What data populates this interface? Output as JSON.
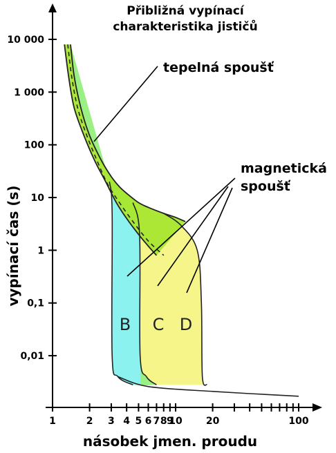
{
  "chart_data": {
    "type": "area",
    "title": [
      "Přibližná vypínací",
      "charakteristika jističů"
    ],
    "xlabel": "násobek jmen. proudu",
    "ylabel": "vypínací čas (s)",
    "xscale": "log",
    "yscale": "log",
    "xlim": [
      1,
      100
    ],
    "ylim": [
      0.0015,
      10000
    ],
    "x_tick_labels": [
      {
        "x": 1,
        "label": "1"
      },
      {
        "x": 2,
        "label": "2"
      },
      {
        "x": 3,
        "label": "3"
      },
      {
        "x": 4,
        "label": "4"
      },
      {
        "x": 5,
        "label": "5"
      },
      {
        "x": 6,
        "label": "6"
      },
      {
        "x": 7,
        "label": "7"
      },
      {
        "x": 8,
        "label": "8"
      },
      {
        "x": 9,
        "label": "9"
      },
      {
        "x": 10,
        "label": "10"
      },
      {
        "x": 20,
        "label": "20"
      },
      {
        "x": 100,
        "label": "100"
      }
    ],
    "x_minor_ticks": [
      30,
      40,
      50,
      60,
      70,
      80,
      90
    ],
    "y_tick_labels": [
      {
        "y": 10000,
        "label": "10 000"
      },
      {
        "y": 1000,
        "label": "1 000"
      },
      {
        "y": 100,
        "label": "100"
      },
      {
        "y": 10,
        "label": "10"
      },
      {
        "y": 1,
        "label": "1"
      },
      {
        "y": 0.1,
        "label": "0,1"
      },
      {
        "y": 0.01,
        "label": "0,01"
      }
    ],
    "thermal_band": {
      "name": "tepelná spoušť",
      "color": "#a8e632",
      "upper": [
        [
          1.4,
          8000
        ],
        [
          1.5,
          2000
        ],
        [
          1.7,
          500
        ],
        [
          2,
          150
        ],
        [
          2.5,
          50
        ],
        [
          3,
          25
        ],
        [
          3.5,
          16
        ],
        [
          4,
          12
        ],
        [
          5,
          8
        ],
        [
          6,
          6.5
        ],
        [
          8,
          5
        ],
        [
          10,
          4.2
        ],
        [
          12,
          3.5
        ]
      ],
      "lower": [
        [
          1.25,
          8000
        ],
        [
          1.35,
          2000
        ],
        [
          1.5,
          500
        ],
        [
          1.8,
          150
        ],
        [
          2.2,
          50
        ],
        [
          2.7,
          20
        ],
        [
          3.3,
          8
        ],
        [
          4,
          4
        ],
        [
          5,
          2
        ],
        [
          6,
          1.2
        ],
        [
          7,
          0.8
        ]
      ],
      "middle": [
        [
          1.33,
          8000
        ],
        [
          1.43,
          2000
        ],
        [
          1.6,
          500
        ],
        [
          1.9,
          150
        ],
        [
          2.3,
          50
        ],
        [
          2.8,
          18
        ],
        [
          3.5,
          8
        ],
        [
          4.5,
          3.5
        ],
        [
          6,
          1.5
        ],
        [
          8,
          0.8
        ]
      ]
    },
    "curves": [
      {
        "name": "B",
        "color": "#8cf2f0",
        "magnetic_min": 3,
        "magnetic_max": 5,
        "boundary": [
          [
            2.9,
            20
          ],
          [
            3.05,
            5
          ],
          [
            3.05,
            0.01
          ],
          [
            3.4,
            0.004
          ],
          [
            4.5,
            0.0028
          ]
        ]
      },
      {
        "name": "C",
        "color": "#9af084",
        "magnetic_min": 5,
        "magnetic_max": 10,
        "boundary": [
          [
            4.5,
            8
          ],
          [
            5.1,
            2
          ],
          [
            5.15,
            0.01
          ],
          [
            5.8,
            0.004
          ],
          [
            7,
            0.0028
          ]
        ]
      },
      {
        "name": "D",
        "color": "#f5f58a",
        "magnetic_min": 10,
        "magnetic_max": 20,
        "boundary": [
          [
            8,
            5
          ],
          [
            11,
            3
          ],
          [
            15,
            1
          ],
          [
            16.2,
            0.1
          ],
          [
            16.5,
            0.004
          ],
          [
            18,
            0.0028
          ]
        ]
      }
    ],
    "right_boundary": [
      [
        2.9,
        20
      ],
      [
        3.05,
        5
      ],
      [
        4.5,
        8
      ],
      [
        8,
        5
      ],
      [
        11.5,
        3.2
      ],
      [
        13.5,
        2
      ],
      [
        15.5,
        0.5
      ],
      [
        16.2,
        0.1
      ],
      [
        16.5,
        0.004
      ],
      [
        100,
        0.0017
      ]
    ],
    "annotations": [
      {
        "label": "tepelná spoušť"
      },
      {
        "label_lines": [
          "magnetická",
          "spoušť"
        ]
      }
    ],
    "colors": {
      "axis": "#000000",
      "outline": "#222222",
      "curve": "#000000"
    }
  }
}
